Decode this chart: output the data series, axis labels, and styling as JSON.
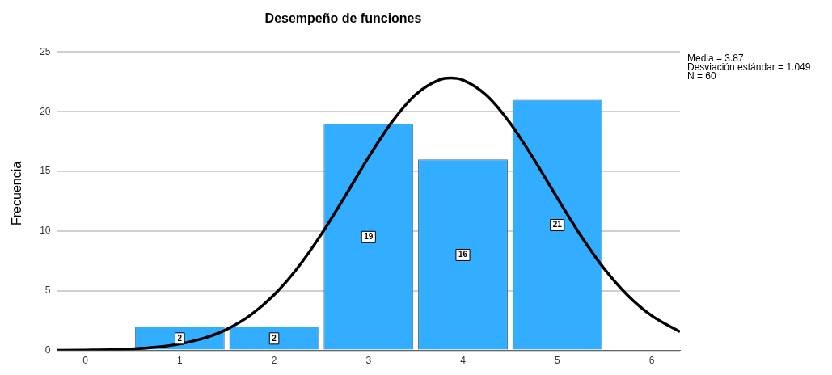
{
  "chart_data": {
    "type": "histogram",
    "title": "Desempeño de funciones",
    "ylabel": "Frecuencia",
    "annotations": [
      "Media = 3.87",
      "Desviación estándar = 1.049",
      "N = 60"
    ],
    "bins": [
      0.5,
      1.5,
      2.5,
      3.5,
      4.5,
      5.5
    ],
    "values": [
      2,
      2,
      19,
      16,
      21
    ],
    "value_labels": [
      "2",
      "2",
      "19",
      "16",
      "21"
    ],
    "color": "#33adff",
    "series": [
      {
        "type": "line",
        "color": "#000000",
        "x": [
          -0.3,
          0,
          0.5,
          0.75,
          1,
          1.25,
          1.5,
          1.75,
          2,
          2.25,
          2.5,
          2.75,
          3,
          3.25,
          3.5,
          3.75,
          3.87,
          4,
          4.25,
          4.5,
          4.75,
          5,
          5.25,
          5.5,
          5.75,
          6,
          6.3
        ],
        "values": [
          0.01,
          0.03,
          0.13,
          0.27,
          0.54,
          1.01,
          1.78,
          2.96,
          4.66,
          6.93,
          9.73,
          12.9,
          16.18,
          19.16,
          21.44,
          22.67,
          22.82,
          22.65,
          21.37,
          19.05,
          16.05,
          12.78,
          9.61,
          6.82,
          4.58,
          2.91,
          1.56
        ]
      }
    ],
    "xlim": [
      -0.3,
      6.3
    ],
    "xticks": [
      0,
      1,
      2,
      3,
      4,
      5,
      6
    ],
    "ylim": [
      0,
      26.3
    ],
    "yticks": [
      0,
      5,
      10,
      15,
      20,
      25
    ],
    "grid": "y"
  }
}
